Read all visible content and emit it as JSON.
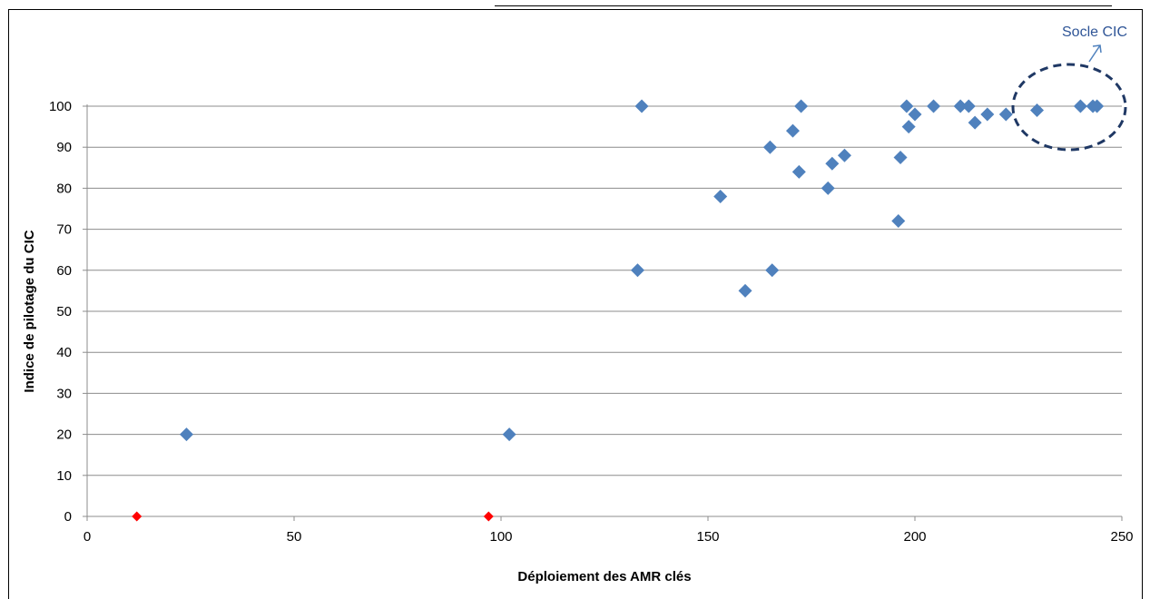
{
  "chart_data": {
    "type": "scatter",
    "xlabel": "Déploiement des AMR clés",
    "ylabel": "Indice de pilotage du CIC",
    "xlim": [
      0,
      250
    ],
    "ylim": [
      0,
      100
    ],
    "x_ticks": [
      0,
      50,
      100,
      150,
      200,
      250
    ],
    "y_ticks": [
      0,
      10,
      20,
      30,
      40,
      50,
      60,
      70,
      80,
      90,
      100
    ],
    "grid": "horizontal",
    "series": [
      {
        "color": "#4F81BD",
        "points": [
          [
            24,
            20
          ],
          [
            102,
            20
          ],
          [
            133,
            60
          ],
          [
            134,
            100
          ],
          [
            153,
            78
          ],
          [
            159,
            55
          ],
          [
            165,
            90
          ],
          [
            165.5,
            60
          ],
          [
            170.5,
            94
          ],
          [
            172,
            84
          ],
          [
            172.5,
            100
          ],
          [
            179,
            80
          ],
          [
            180,
            86
          ],
          [
            183,
            88
          ],
          [
            196,
            72
          ],
          [
            196.5,
            87.5
          ],
          [
            198,
            100
          ],
          [
            198.5,
            95
          ],
          [
            200,
            98
          ],
          [
            204.5,
            100
          ],
          [
            211,
            100
          ],
          [
            213,
            100
          ],
          [
            214.5,
            96
          ],
          [
            217.5,
            98
          ],
          [
            222,
            98
          ],
          [
            229.5,
            99
          ],
          [
            240,
            100
          ],
          [
            243,
            100
          ],
          [
            244,
            100
          ]
        ]
      },
      {
        "color": "#FF0000",
        "points": [
          [
            12,
            0
          ],
          [
            97,
            0
          ]
        ]
      }
    ],
    "annotation": {
      "text": "Socle CIC",
      "color": "#2F5597"
    }
  }
}
